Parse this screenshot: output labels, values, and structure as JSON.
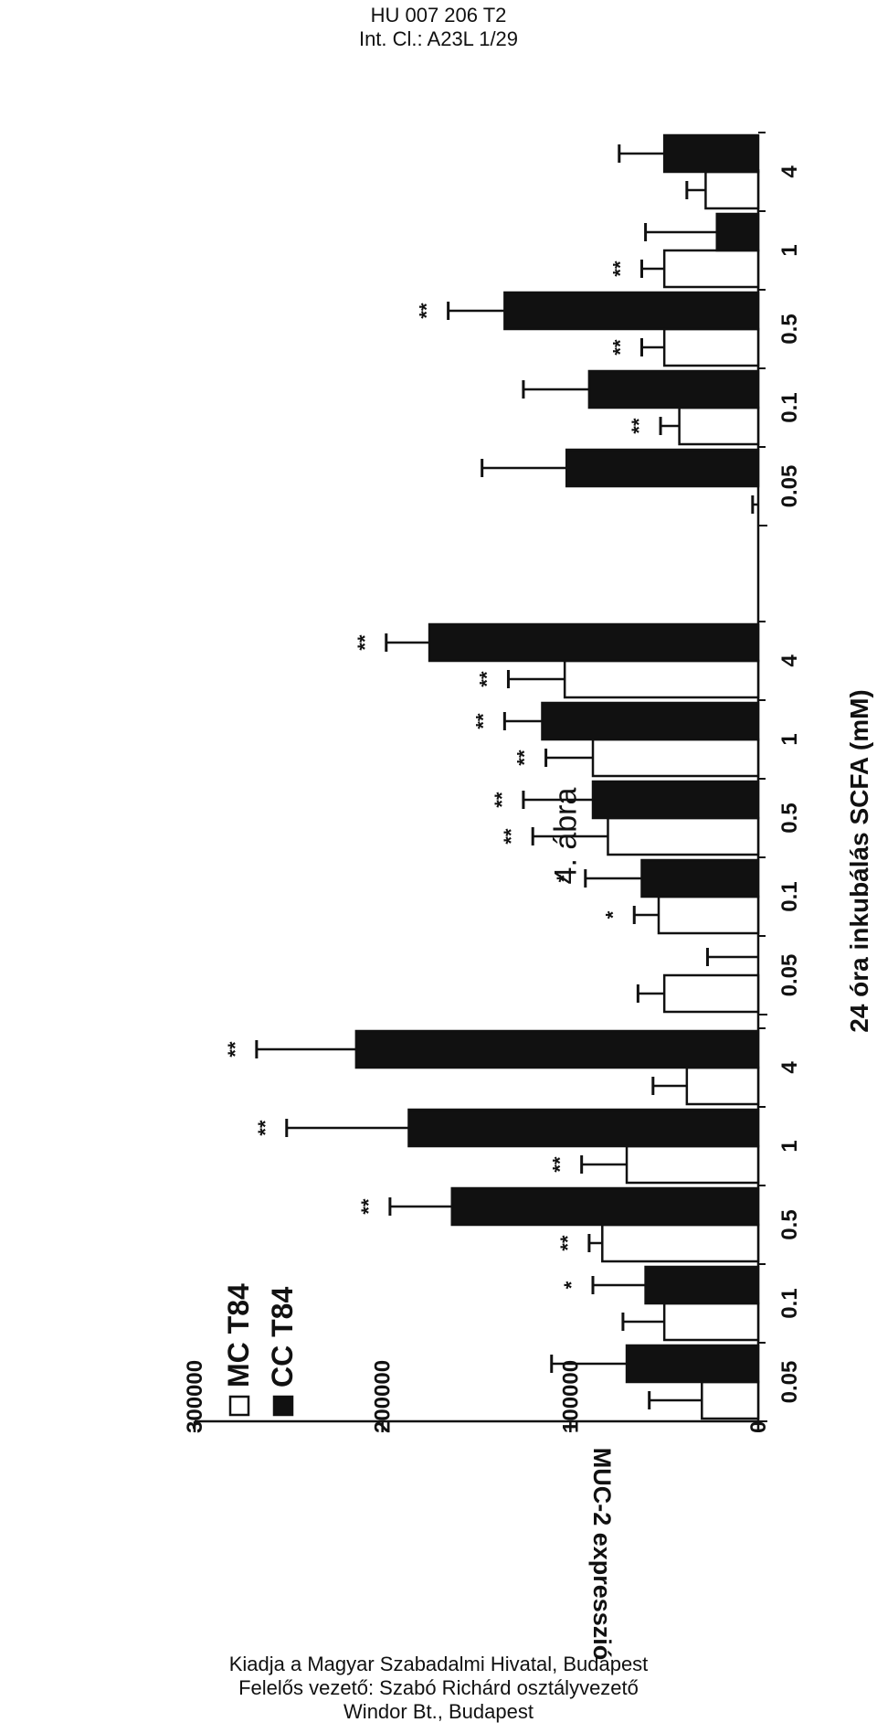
{
  "header": {
    "doc_id": "HU 007 206 T2",
    "int_cl": "Int. Cl.: A23L 1/29"
  },
  "figure_label": "4. ábra",
  "footer": {
    "line1": "Kiadja a Magyar Szabadalmi Hivatal, Budapest",
    "line2": "Felelős vezető: Szabó Richárd osztályvezető",
    "line3": "Windor Bt., Budapest"
  },
  "chart_data": {
    "type": "bar",
    "title": "",
    "xlabel": "24 óra inkubálás SCFA (mM)",
    "ylabel": "MUC-2 expresszió",
    "ylim": [
      0,
      300000
    ],
    "y_ticks": [
      0,
      100000,
      200000,
      300000
    ],
    "y_tick_labels": [
      "0",
      "100000",
      "200000",
      "300000"
    ],
    "legend_position": "top-left",
    "groups": [
      {
        "categories": [
          "0.05",
          "0.1",
          "0.5",
          "1",
          "4"
        ],
        "series": [
          {
            "name": "MC T84",
            "values": [
              30000,
              50000,
              83000,
              70000,
              38000
            ],
            "errors": [
              28000,
              22000,
              7000,
              24000,
              18000
            ],
            "stars": [
              "",
              "",
              "**",
              "**",
              ""
            ]
          },
          {
            "name": "CC T84",
            "values": [
              70000,
              60000,
              163000,
              186000,
              214000
            ],
            "errors": [
              40000,
              28000,
              33000,
              65000,
              53000
            ],
            "stars": [
              "",
              "*",
              "**",
              "**",
              "**"
            ]
          }
        ]
      },
      {
        "categories": [
          "0.05",
          "0.1",
          "0.5",
          "1",
          "4"
        ],
        "series": [
          {
            "name": "MC T84",
            "values": [
              50000,
              53000,
              80000,
              88000,
              103000
            ],
            "errors": [
              14000,
              13000,
              40000,
              25000,
              30000
            ],
            "stars": [
              "",
              "*",
              "**",
              "**",
              "**"
            ]
          },
          {
            "name": "CC T84",
            "values": [
              0,
              62000,
              88000,
              115000,
              175000
            ],
            "errors": [
              27000,
              30000,
              37000,
              20000,
              23000
            ],
            "stars": [
              "",
              "*",
              "**",
              "**",
              "**"
            ]
          }
        ]
      },
      {
        "categories": [
          "0.05",
          "0.1",
          "0.5",
          "1",
          "4"
        ],
        "series": [
          {
            "name": "MC T84",
            "values": [
              0,
              42000,
              50000,
              50000,
              28000
            ],
            "errors": [
              3000,
              10000,
              12000,
              12000,
              10000
            ],
            "stars": [
              "",
              "**",
              "**",
              "**",
              ""
            ]
          },
          {
            "name": "CC T84",
            "values": [
              102000,
              90000,
              135000,
              22000,
              50000
            ],
            "errors": [
              45000,
              35000,
              30000,
              38000,
              24000
            ],
            "stars": [
              "",
              "",
              "**",
              "",
              ""
            ]
          }
        ]
      }
    ],
    "colors": {
      "MC T84": "#ffffff",
      "CC T84": "#111111"
    }
  }
}
